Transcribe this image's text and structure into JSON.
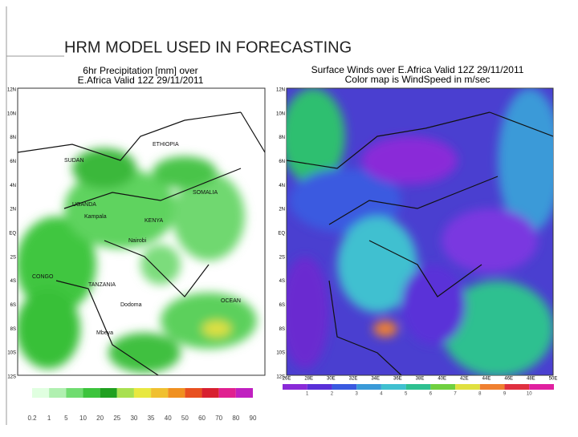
{
  "header": {
    "title": "HRM MODEL USED IN FORECASTING"
  },
  "left_map": {
    "title_lines": [
      "6hr Precipitation [mm] over",
      "E.Africa Valid 12Z 29/11/2011"
    ],
    "lat_labels": [
      "12N",
      "10N",
      "8N",
      "6N",
      "4N",
      "2N",
      "EQ",
      "2S",
      "4S",
      "6S",
      "8S",
      "10S",
      "12S"
    ],
    "places": [
      "SUDAN",
      "ETHIOPIA",
      "UGANDA",
      "KENYA",
      "SOMALIA",
      "CONGO",
      "TANZANIA",
      "OCEAN",
      "Nairobi",
      "Dodoma",
      "Mbeya",
      "Kampala"
    ],
    "colorbar_labels": [
      "0.2",
      "1",
      "5",
      "10",
      "20",
      "25",
      "30",
      "35",
      "40",
      "50",
      "60",
      "70",
      "80",
      "90"
    ]
  },
  "right_map": {
    "title_lines": [
      "Surface Winds over E.Africa Valid 12Z 29/11/2011",
      "Color map is WindSpeed in m/sec"
    ],
    "lat_labels": [
      "12N",
      "10N",
      "8N",
      "6N",
      "4N",
      "2N",
      "EQ",
      "2S",
      "4S",
      "6S",
      "8S",
      "10S",
      "12S"
    ],
    "lon_labels": [
      "26E",
      "28E",
      "30E",
      "32E",
      "34E",
      "36E",
      "38E",
      "40E",
      "42E",
      "44E",
      "46E",
      "48E",
      "50E"
    ],
    "colorbar_labels": [
      "1",
      "2",
      "3",
      "4",
      "5",
      "6",
      "7",
      "8",
      "9",
      "10"
    ]
  }
}
